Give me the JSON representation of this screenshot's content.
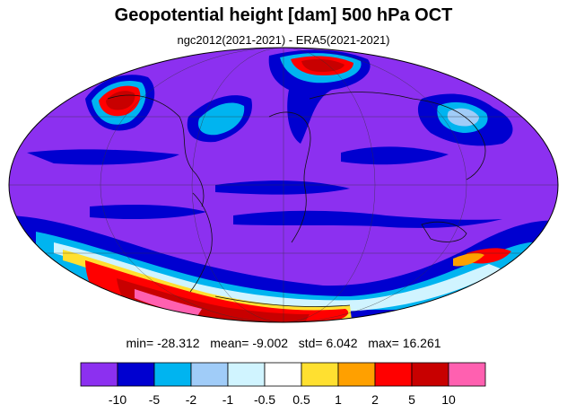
{
  "title": "Geopotential height [dam] 500 hPa OCT",
  "subtitle": "ngc2012(2021-2021) - ERA5(2021-2021)",
  "stats": {
    "min_label": "min=",
    "min": "-28.312",
    "mean_label": "mean=",
    "mean": "-9.002",
    "std_label": "std=",
    "std": "6.042",
    "max_label": "max=",
    "max": "16.261"
  },
  "colorbar": {
    "colors": [
      "#8c30f0",
      "#0000d0",
      "#00b4f0",
      "#a0ccf8",
      "#d0f4ff",
      "#ffffff",
      "#ffe030",
      "#ffa000",
      "#ff0000",
      "#c80000",
      "#ff60b0"
    ],
    "ticks": [
      "-10",
      "-5",
      "-2",
      "-1",
      "-0.5",
      "0.5",
      "1",
      "2",
      "5",
      "10"
    ]
  },
  "map": {
    "projection": "mollweide",
    "background_color": "#8c30f0"
  }
}
